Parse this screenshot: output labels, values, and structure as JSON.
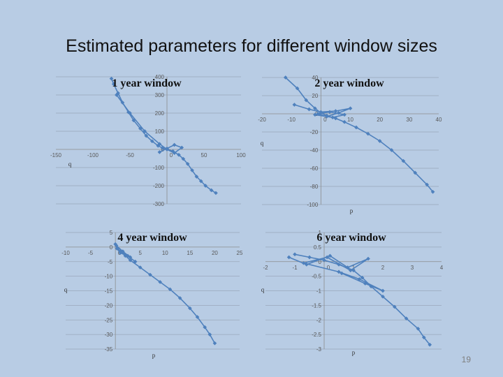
{
  "slide": {
    "title": "Estimated parameters for different window sizes",
    "page_number": "19"
  },
  "chart_data": [
    {
      "type": "scatter",
      "title": "1 year window",
      "xlabel": "",
      "ylabel": "q",
      "xlim": [
        -150,
        100
      ],
      "ylim": [
        -300,
        400
      ],
      "xticks": [
        -150,
        -100,
        -50,
        0,
        50,
        100
      ],
      "yticks": [
        -300,
        -200,
        -100,
        0,
        100,
        200,
        300,
        400
      ],
      "grid": "horizontal",
      "series": [
        {
          "x": [
            -75,
            -72,
            -66,
            -60,
            -52,
            -45,
            -36,
            -28,
            -20,
            -12,
            -6,
            0,
            8,
            16,
            22,
            28,
            34,
            40,
            46,
            52,
            60,
            66
          ],
          "y": [
            390,
            360,
            310,
            258,
            205,
            160,
            115,
            75,
            45,
            20,
            8,
            2,
            -10,
            -30,
            -52,
            -80,
            -115,
            -150,
            -175,
            -200,
            -225,
            -240
          ]
        },
        {
          "x": [
            -68,
            -50,
            -30,
            -10,
            0,
            10,
            20,
            10,
            0,
            -10
          ],
          "y": [
            300,
            200,
            100,
            30,
            0,
            -20,
            10,
            25,
            5,
            -15
          ]
        }
      ]
    },
    {
      "type": "scatter",
      "title": "2 year window",
      "xlabel": "p",
      "ylabel": "q",
      "xlim": [
        -20,
        40
      ],
      "ylim": [
        -100,
        40
      ],
      "xticks": [
        -20,
        -10,
        0,
        10,
        20,
        30,
        40
      ],
      "yticks": [
        -100,
        -80,
        -60,
        -40,
        -20,
        0,
        20,
        40
      ],
      "grid": "horizontal",
      "series": [
        {
          "x": [
            -12,
            -8,
            -5,
            -2,
            0,
            2,
            5,
            8,
            12,
            16,
            20,
            24,
            28,
            32,
            36,
            38
          ],
          "y": [
            40,
            28,
            15,
            6,
            1,
            -2,
            -5,
            -9,
            -15,
            -22,
            -30,
            -40,
            -52,
            -65,
            -78,
            -86
          ]
        },
        {
          "x": [
            -9,
            -4,
            0,
            5,
            10,
            6,
            2,
            -1,
            3,
            8,
            4,
            -2
          ],
          "y": [
            10,
            5,
            2,
            3,
            6,
            1,
            -3,
            0,
            2,
            -1,
            -4,
            -1
          ]
        }
      ]
    },
    {
      "type": "scatter",
      "title": "4 year window",
      "xlabel": "p",
      "ylabel": "q",
      "xlim": [
        -10,
        25
      ],
      "ylim": [
        -35,
        5
      ],
      "xticks": [
        -10,
        -5,
        0,
        5,
        10,
        15,
        20,
        25
      ],
      "yticks": [
        -35,
        -30,
        -25,
        -20,
        -15,
        -10,
        -5,
        0,
        5
      ],
      "grid": "horizontal",
      "series": [
        {
          "x": [
            0,
            0.5,
            1,
            2,
            3,
            5,
            7,
            9,
            11,
            13,
            15,
            16.5,
            18,
            19,
            20
          ],
          "y": [
            1,
            -0.5,
            -1.5,
            -3,
            -4.5,
            -7,
            -9.5,
            -12,
            -14.5,
            -17.5,
            -21,
            -24,
            -27.5,
            -30,
            -33
          ]
        },
        {
          "x": [
            0.2,
            1.5,
            3,
            1,
            0.3,
            2.5,
            4
          ],
          "y": [
            0.5,
            -1.5,
            -3.5,
            -2,
            -0.5,
            -3,
            -5
          ]
        }
      ]
    },
    {
      "type": "scatter",
      "title": "6 year window",
      "xlabel": "p",
      "ylabel": "q",
      "xlim": [
        -2,
        4
      ],
      "ylim": [
        -3,
        1
      ],
      "xticks": [
        -2,
        -1,
        0,
        1,
        2,
        3,
        4
      ],
      "yticks": [
        -3,
        -2.5,
        -2,
        -1.5,
        -1,
        -0.5,
        0,
        0.5,
        1
      ],
      "grid": "horizontal",
      "series": [
        {
          "x": [
            -1,
            -0.5,
            0,
            0.5,
            1,
            1.3,
            1.6,
            2,
            2.4,
            2.8,
            3.2,
            3.4,
            3.6
          ],
          "y": [
            0.25,
            0.15,
            0.05,
            -0.1,
            -0.3,
            -0.55,
            -0.85,
            -1.2,
            -1.55,
            -1.95,
            -2.3,
            -2.6,
            -2.85
          ]
        },
        {
          "x": [
            -1.2,
            -0.6,
            0.2,
            0.8,
            1.5,
            0.9,
            0.1,
            -0.7,
            0.5,
            1.2,
            2,
            1.4,
            0.6
          ],
          "y": [
            0.15,
            -0.1,
            0.2,
            -0.2,
            0.1,
            -0.3,
            0.15,
            -0.05,
            -0.35,
            -0.6,
            -1.0,
            -0.75,
            -0.4
          ]
        }
      ]
    }
  ]
}
